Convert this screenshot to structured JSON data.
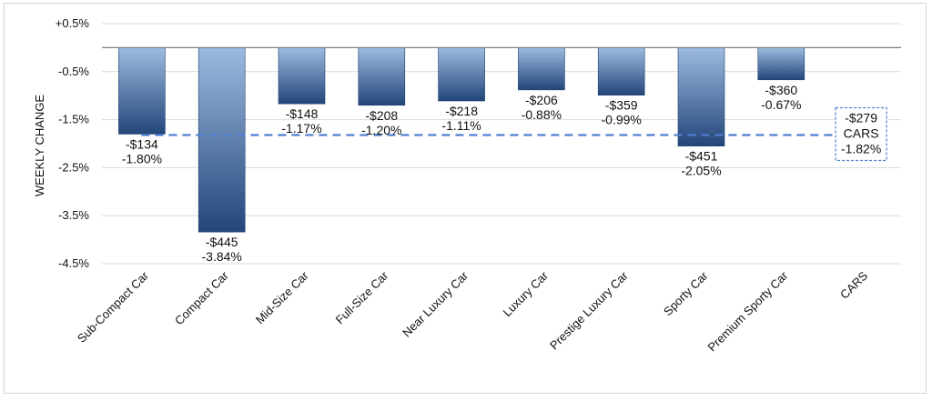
{
  "chart_data": {
    "type": "bar",
    "ylabel": "WEEKLY CHANGE",
    "ylim": [
      -4.5,
      0.5
    ],
    "yticks": [
      "+0.5%",
      "-0.5%",
      "-1.5%",
      "-2.5%",
      "-3.5%",
      "-4.5%"
    ],
    "ytick_values": [
      0.5,
      -0.5,
      -1.5,
      -2.5,
      -3.5,
      -4.5
    ],
    "grid": true,
    "categories": [
      "Sub-Compact Car",
      "Compact Car",
      "Mid-Size Car",
      "Full-Size Car",
      "Near Luxury Car",
      "Luxury Car",
      "Prestige Luxury Car",
      "Sporty Car",
      "Premium Sporty Car",
      "CARS"
    ],
    "values": [
      -1.8,
      -3.84,
      -1.17,
      -1.2,
      -1.11,
      -0.88,
      -0.99,
      -2.05,
      -0.67,
      -1.82
    ],
    "dollar_labels": [
      "-$134",
      "-$445",
      "-$148",
      "-$208",
      "-$218",
      "-$206",
      "-$359",
      "-$451",
      "-$360",
      "-$279"
    ],
    "percent_labels": [
      "-1.80%",
      "-3.84%",
      "-1.17%",
      "-1.20%",
      "-1.11%",
      "-0.88%",
      "-0.99%",
      "-2.05%",
      "-0.67%",
      "-1.82%"
    ],
    "reference_line": {
      "value": -1.82,
      "category": "CARS",
      "label_dollar": "-$279",
      "label_name": "CARS",
      "label_percent": "-1.82%"
    },
    "colors": {
      "bar_top": "#9dbbe0",
      "bar_bottom": "#23467a",
      "bar_border": "#1f3f6e",
      "reference_line": "#4f7fd0",
      "grid": "#d9d9d9",
      "zero_line": "#7f7f7f"
    }
  }
}
